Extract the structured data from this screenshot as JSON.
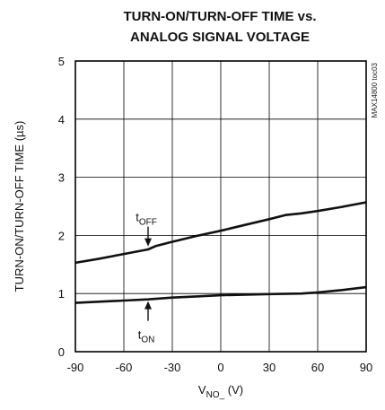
{
  "chart_data": {
    "type": "line",
    "title": [
      "TURN-ON/TURN-OFF TIME vs.",
      "ANALOG SIGNAL VOLTAGE"
    ],
    "xlabel": {
      "main": "V",
      "sub": "NO_",
      "unit": " (V)"
    },
    "ylabel": "TURN-ON/TURN-OFF TIME (µs)",
    "xlim": [
      -90,
      90
    ],
    "ylim": [
      0,
      5
    ],
    "xticks": [
      -90,
      -60,
      -30,
      0,
      30,
      60,
      90
    ],
    "yticks": [
      0,
      1,
      2,
      3,
      4,
      5
    ],
    "grid": true,
    "series": [
      {
        "name": "tOFF",
        "x": [
          -90,
          -75,
          -60,
          -45,
          -40,
          -30,
          -15,
          0,
          15,
          30,
          40,
          50,
          60,
          75,
          90
        ],
        "y": [
          1.53,
          1.6,
          1.68,
          1.76,
          1.82,
          1.89,
          1.99,
          2.08,
          2.18,
          2.28,
          2.35,
          2.38,
          2.42,
          2.49,
          2.57
        ]
      },
      {
        "name": "tON",
        "x": [
          -90,
          -60,
          -45,
          -30,
          -15,
          0,
          30,
          50,
          60,
          75,
          90
        ],
        "y": [
          0.84,
          0.88,
          0.9,
          0.93,
          0.95,
          0.97,
          0.99,
          1.0,
          1.02,
          1.06,
          1.11
        ]
      }
    ],
    "annotations": [
      {
        "series": "tOFF",
        "label_main": "t",
        "label_sub": "OFF",
        "x": -45,
        "y": 1.78,
        "position": "above"
      },
      {
        "series": "tON",
        "label_main": "t",
        "label_sub": "ON",
        "x": -45,
        "y": 0.9,
        "position": "below"
      }
    ],
    "watermark": "MAX14800 toc03"
  },
  "colors": {
    "line": "#111111",
    "grid": "#000000",
    "background": "#ffffff"
  }
}
